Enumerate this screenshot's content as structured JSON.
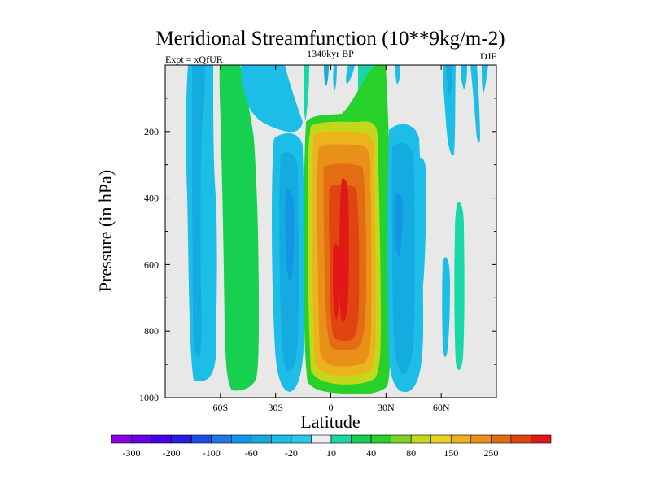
{
  "chart_data": {
    "type": "contour",
    "title": "Meridional Streamfunction (10**9kg/m-2)",
    "subtitle_left": "Expt = xQfUR",
    "subtitle_center": "1340kyr BP",
    "subtitle_right": "DJF",
    "xlabel": "Latitude",
    "ylabel": "Pressure (in hPa)",
    "xlim": [
      -90,
      90
    ],
    "ylim": [
      1000,
      0
    ],
    "x_ticks": [
      {
        "value": -60,
        "label": "60S"
      },
      {
        "value": -30,
        "label": "30S"
      },
      {
        "value": 0,
        "label": "0"
      },
      {
        "value": 30,
        "label": "30N"
      },
      {
        "value": 60,
        "label": "60N"
      }
    ],
    "y_ticks": [
      {
        "value": 200,
        "label": "200"
      },
      {
        "value": 400,
        "label": "400"
      },
      {
        "value": 600,
        "label": "600"
      },
      {
        "value": 800,
        "label": "800"
      },
      {
        "value": 1000,
        "label": "1000"
      }
    ],
    "background_color": "#e8e8e8",
    "colorbar": {
      "levels": [
        "-300",
        "-250",
        "-200",
        "-150",
        "-100",
        "-80",
        "-60",
        "-40",
        "-20",
        "-10",
        "10",
        "20",
        "40",
        "60",
        "80",
        "100",
        "150",
        "200",
        "250",
        "300"
      ],
      "labels": [
        "-300",
        "-200",
        "-100",
        "-60",
        "-20",
        "10",
        "40",
        "80",
        "150",
        "250"
      ],
      "colors": [
        "#8c00e6",
        "#6600e6",
        "#4800e6",
        "#2a1ae6",
        "#1f4be8",
        "#1f78e8",
        "#1496e6",
        "#14abe0",
        "#1cbde6",
        "#28c8e8",
        "#ececec",
        "#19d8a8",
        "#18d050",
        "#28d02a",
        "#7ed228",
        "#c3d81c",
        "#e8d21c",
        "#ecb41c",
        "#e89018",
        "#e46c14",
        "#e04410",
        "#e01818"
      ]
    },
    "regions": [
      {
        "name": "high-lat-south-cell",
        "sign": "negative",
        "lat_range": [
          -79,
          -63
        ],
        "pressure_range": [
          0,
          970
        ],
        "level": -20
      },
      {
        "name": "high-lat-south-core",
        "sign": "negative",
        "lat_range": [
          -76,
          -69
        ],
        "pressure_range": [
          200,
          880
        ],
        "level": -40
      },
      {
        "name": "ferrel-south-cell",
        "sign": "positive",
        "lat_range": [
          -57,
          -42
        ],
        "pressure_range": [
          0,
          990
        ],
        "level": 20
      },
      {
        "name": "south-negative-upper",
        "sign": "negative",
        "lat_range": [
          -45,
          -15
        ],
        "pressure_range": [
          0,
          200
        ],
        "level": -20
      },
      {
        "name": "south-negative-cell",
        "sign": "negative",
        "lat_range": [
          -33,
          -15
        ],
        "pressure_range": [
          140,
          980
        ],
        "level": -40
      },
      {
        "name": "south-negative-core",
        "sign": "negative",
        "lat_range": [
          -27,
          -21
        ],
        "pressure_range": [
          250,
          600
        ],
        "level": -80
      },
      {
        "name": "hadley-cell",
        "sign": "positive",
        "lat_range": [
          -12,
          27
        ],
        "pressure_range": [
          0,
          990
        ],
        "level": 20
      },
      {
        "name": "hadley-cell-core",
        "sign": "positive",
        "lat_range": [
          2,
          13
        ],
        "pressure_range": [
          330,
          870
        ],
        "level": 250
      },
      {
        "name": "north-negative-cell",
        "sign": "negative",
        "lat_range": [
          27,
          48
        ],
        "pressure_range": [
          100,
          990
        ],
        "level": -40
      },
      {
        "name": "north-negative-core",
        "sign": "negative",
        "lat_range": [
          33,
          41
        ],
        "pressure_range": [
          340,
          600
        ],
        "level": -60
      },
      {
        "name": "north-high-lat-positive",
        "sign": "positive",
        "lat_range": [
          63,
          69
        ],
        "pressure_range": [
          400,
          960
        ],
        "level": 20
      }
    ]
  }
}
